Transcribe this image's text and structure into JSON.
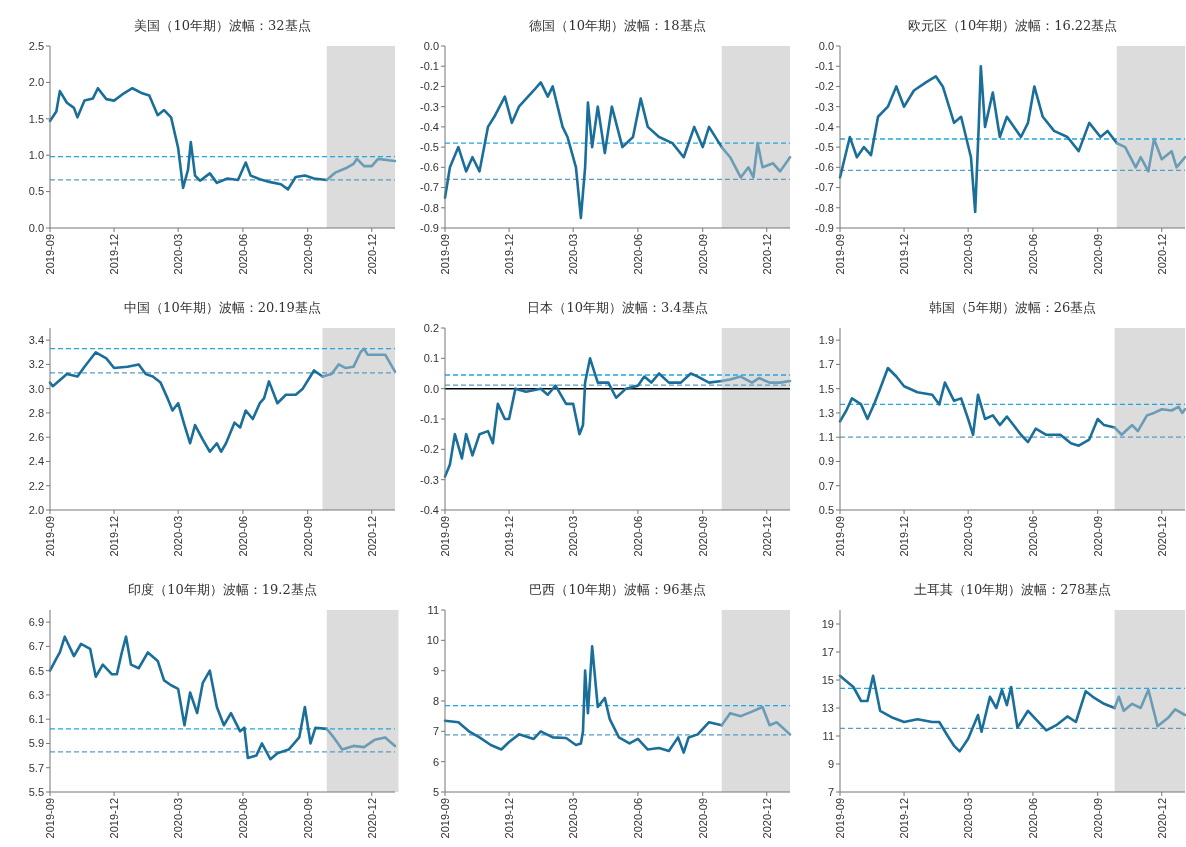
{
  "chart_data": [
    {
      "type": "line",
      "title": "美国（10年期）波幅：32基点",
      "xlim": [
        "2019-09-01",
        "2021-01-03"
      ],
      "xticks": [
        {
          "value": "2019-09-01",
          "label": "2019-09"
        },
        {
          "value": "2019-12-01",
          "label": "2019-12"
        },
        {
          "value": "2020-03-01",
          "label": "2020-03"
        },
        {
          "value": "2020-06-01",
          "label": "2020-06"
        },
        {
          "value": "2020-09-01",
          "label": "2020-09"
        },
        {
          "value": "2020-12-01",
          "label": "2020-12"
        }
      ],
      "ylim": [
        0,
        2.5
      ],
      "yticks": [
        {
          "value": 0,
          "label": "0.0"
        },
        {
          "value": 0.5,
          "label": "0.5"
        },
        {
          "value": 1,
          "label": "1.0"
        },
        {
          "value": 1.5,
          "label": "1.5"
        },
        {
          "value": 2,
          "label": "2.0"
        },
        {
          "value": 2.5,
          "label": "2.5"
        }
      ],
      "grid": false,
      "line_style": "solid",
      "bands": [
        {
          "axis": "x",
          "from": "2020-09-28",
          "to": "2021-01-03",
          "color": "#dcdcdc"
        }
      ],
      "ref_lines": [
        {
          "axis": "y",
          "value": 0.98,
          "color": "#21a6df",
          "line_style": "dashed"
        },
        {
          "axis": "y",
          "value": 0.66,
          "color": "#5b9cc0",
          "line_style": "dashed"
        }
      ],
      "series": [
        {
          "color": "#1a6e9a",
          "x": [
            "2019-09-01",
            "2019-09-10",
            "2019-09-15",
            "2019-09-25",
            "2019-10-05",
            "2019-10-10",
            "2019-10-20",
            "2019-11-01",
            "2019-11-08",
            "2019-11-20",
            "2019-12-01",
            "2019-12-15",
            "2019-12-27",
            "2020-01-10",
            "2020-01-20",
            "2020-02-01",
            "2020-02-10",
            "2020-02-20",
            "2020-03-01",
            "2020-03-08",
            "2020-03-15",
            "2020-03-19",
            "2020-03-25",
            "2020-04-01",
            "2020-04-15",
            "2020-04-25",
            "2020-05-10",
            "2020-05-25",
            "2020-06-05",
            "2020-06-12",
            "2020-06-25",
            "2020-07-10",
            "2020-07-25",
            "2020-08-04",
            "2020-08-15",
            "2020-08-28",
            "2020-09-10",
            "2020-09-28"
          ],
          "values": [
            1.47,
            1.6,
            1.88,
            1.72,
            1.65,
            1.52,
            1.75,
            1.78,
            1.92,
            1.77,
            1.75,
            1.85,
            1.92,
            1.85,
            1.82,
            1.55,
            1.62,
            1.52,
            1.1,
            0.55,
            0.8,
            1.18,
            0.72,
            0.65,
            0.75,
            0.62,
            0.68,
            0.66,
            0.9,
            0.72,
            0.67,
            0.63,
            0.6,
            0.53,
            0.7,
            0.72,
            0.68,
            0.66
          ]
        },
        {
          "color": "#6a9cb5",
          "x": [
            "2020-09-28",
            "2020-10-10",
            "2020-10-25",
            "2020-11-05",
            "2020-11-10",
            "2020-11-20",
            "2020-12-01",
            "2020-12-10",
            "2020-12-25",
            "2021-01-03"
          ],
          "values": [
            0.66,
            0.76,
            0.82,
            0.88,
            0.95,
            0.85,
            0.85,
            0.95,
            0.93,
            0.92
          ]
        }
      ]
    },
    {
      "type": "line",
      "title": "德国（10年期）波幅：18基点",
      "xlim": [
        "2019-09-01",
        "2021-01-03"
      ],
      "xticks": [
        {
          "value": "2019-09-01",
          "label": "2019-09"
        },
        {
          "value": "2019-12-01",
          "label": "2019-12"
        },
        {
          "value": "2020-03-01",
          "label": "2020-03"
        },
        {
          "value": "2020-06-01",
          "label": "2020-06"
        },
        {
          "value": "2020-09-01",
          "label": "2020-09"
        },
        {
          "value": "2020-12-01",
          "label": "2020-12"
        }
      ],
      "ylim": [
        -0.9,
        0
      ],
      "yticks": [
        {
          "value": 0,
          "label": "0.0"
        },
        -0.1,
        -0.2,
        -0.3,
        -0.4,
        -0.5,
        -0.6,
        -0.7,
        -0.8,
        -0.9
      ],
      "grid": false,
      "line_style": "solid",
      "bands": [
        {
          "axis": "x",
          "from": "2020-09-28",
          "to": "2021-01-03",
          "color": "#dcdcdc"
        }
      ],
      "ref_lines": [
        {
          "axis": "y",
          "value": -0.48,
          "color": "#21a6df",
          "line_style": "dashed"
        },
        {
          "axis": "y",
          "value": -0.66,
          "color": "#5b9cc0",
          "line_style": "dashed"
        }
      ],
      "series": [
        {
          "color": "#1a6e9a",
          "x": [
            "2019-09-01",
            "2019-09-08",
            "2019-09-20",
            "2019-10-01",
            "2019-10-10",
            "2019-10-20",
            "2019-11-01",
            "2019-11-10",
            "2019-11-25",
            "2019-12-05",
            "2019-12-15",
            "2020-01-05",
            "2020-01-15",
            "2020-01-25",
            "2020-02-01",
            "2020-02-15",
            "2020-02-22",
            "2020-03-05",
            "2020-03-12",
            "2020-03-18",
            "2020-03-22",
            "2020-03-28",
            "2020-04-05",
            "2020-04-15",
            "2020-04-25",
            "2020-05-10",
            "2020-05-25",
            "2020-06-05",
            "2020-06-15",
            "2020-07-01",
            "2020-07-20",
            "2020-08-05",
            "2020-08-20",
            "2020-09-01",
            "2020-09-10",
            "2020-09-28"
          ],
          "values": [
            -0.75,
            -0.6,
            -0.5,
            -0.62,
            -0.55,
            -0.62,
            -0.4,
            -0.35,
            -0.25,
            -0.38,
            -0.3,
            -0.22,
            -0.18,
            -0.25,
            -0.2,
            -0.4,
            -0.45,
            -0.6,
            -0.85,
            -0.6,
            -0.28,
            -0.5,
            -0.3,
            -0.53,
            -0.3,
            -0.5,
            -0.45,
            -0.26,
            -0.4,
            -0.45,
            -0.48,
            -0.55,
            -0.4,
            -0.5,
            -0.4,
            -0.5
          ]
        },
        {
          "color": "#6a9cb5",
          "x": [
            "2020-09-28",
            "2020-10-10",
            "2020-10-25",
            "2020-11-05",
            "2020-11-12",
            "2020-11-18",
            "2020-11-25",
            "2020-12-10",
            "2020-12-20",
            "2021-01-03"
          ],
          "values": [
            -0.5,
            -0.55,
            -0.65,
            -0.6,
            -0.65,
            -0.48,
            -0.6,
            -0.58,
            -0.62,
            -0.55
          ]
        }
      ]
    },
    {
      "type": "line",
      "title": "欧元区（10年期）波幅：16.22基点",
      "xlim": [
        "2019-09-01",
        "2021-01-03"
      ],
      "xticks": [
        {
          "value": "2019-09-01",
          "label": "2019-09"
        },
        {
          "value": "2019-12-01",
          "label": "2019-12"
        },
        {
          "value": "2020-03-01",
          "label": "2020-03"
        },
        {
          "value": "2020-06-01",
          "label": "2020-06"
        },
        {
          "value": "2020-09-01",
          "label": "2020-09"
        },
        {
          "value": "2020-12-01",
          "label": "2020-12"
        }
      ],
      "ylim": [
        -0.9,
        0
      ],
      "yticks": [
        {
          "value": 0,
          "label": "0.0"
        },
        -0.1,
        -0.2,
        -0.3,
        -0.4,
        -0.5,
        -0.6,
        -0.7,
        -0.8,
        -0.9
      ],
      "grid": false,
      "line_style": "solid",
      "bands": [
        {
          "axis": "x",
          "from": "2020-09-28",
          "to": "2021-01-03",
          "color": "#dcdcdc"
        }
      ],
      "ref_lines": [
        {
          "axis": "y",
          "value": -0.46,
          "color": "#21a6df",
          "line_style": "dashed"
        },
        {
          "axis": "y",
          "value": -0.615,
          "color": "#5b9cc0",
          "line_style": "dashed"
        }
      ],
      "series": [
        {
          "color": "#1a6e9a",
          "x": [
            "2019-09-01",
            "2019-09-15",
            "2019-09-25",
            "2019-10-05",
            "2019-10-15",
            "2019-10-25",
            "2019-11-08",
            "2019-11-20",
            "2019-12-01",
            "2019-12-15",
            "2020-01-01",
            "2020-01-15",
            "2020-01-25",
            "2020-02-10",
            "2020-02-20",
            "2020-03-05",
            "2020-03-11",
            "2020-03-16",
            "2020-03-19",
            "2020-03-25",
            "2020-04-05",
            "2020-04-15",
            "2020-04-25",
            "2020-05-15",
            "2020-05-25",
            "2020-06-03",
            "2020-06-15",
            "2020-07-01",
            "2020-07-20",
            "2020-08-05",
            "2020-08-20",
            "2020-09-05",
            "2020-09-15",
            "2020-09-28"
          ],
          "values": [
            -0.65,
            -0.45,
            -0.55,
            -0.5,
            -0.54,
            -0.35,
            -0.3,
            -0.2,
            -0.3,
            -0.22,
            -0.18,
            -0.15,
            -0.2,
            -0.38,
            -0.35,
            -0.55,
            -0.82,
            -0.4,
            -0.1,
            -0.4,
            -0.23,
            -0.45,
            -0.35,
            -0.45,
            -0.38,
            -0.2,
            -0.35,
            -0.42,
            -0.45,
            -0.52,
            -0.38,
            -0.45,
            -0.42,
            -0.48
          ]
        },
        {
          "color": "#6a9cb5",
          "x": [
            "2020-09-28",
            "2020-10-10",
            "2020-10-25",
            "2020-11-01",
            "2020-11-12",
            "2020-11-20",
            "2020-12-01",
            "2020-12-15",
            "2020-12-22",
            "2021-01-03"
          ],
          "values": [
            -0.48,
            -0.5,
            -0.6,
            -0.55,
            -0.62,
            -0.46,
            -0.56,
            -0.52,
            -0.6,
            -0.55
          ]
        }
      ]
    },
    {
      "type": "line",
      "title": "中国（10年期）波幅：20.19基点",
      "xlim": [
        "2019-09-01",
        "2021-01-03"
      ],
      "xticks": [
        {
          "value": "2019-09-01",
          "label": "2019-09"
        },
        {
          "value": "2019-12-01",
          "label": "2019-12"
        },
        {
          "value": "2020-03-01",
          "label": "2020-03"
        },
        {
          "value": "2020-06-01",
          "label": "2020-06"
        },
        {
          "value": "2020-09-01",
          "label": "2020-09"
        },
        {
          "value": "2020-12-01",
          "label": "2020-12"
        }
      ],
      "ylim": [
        2,
        3.5
      ],
      "yticks": [
        {
          "value": 2,
          "label": "2.0"
        },
        2.2,
        2.4,
        2.6,
        2.8,
        {
          "value": 3,
          "label": "3.0"
        },
        3.2,
        3.4
      ],
      "grid": false,
      "line_style": "solid",
      "bands": [
        {
          "axis": "x",
          "from": "2020-09-22",
          "to": "2021-01-03",
          "color": "#dcdcdc"
        }
      ],
      "ref_lines": [
        {
          "axis": "y",
          "value": 3.33,
          "color": "#21a6df",
          "line_style": "dashed"
        },
        {
          "axis": "y",
          "value": 3.13,
          "color": "#5b9cc0",
          "line_style": "dashed"
        }
      ],
      "series": [
        {
          "color": "#1a6e9a",
          "x": [
            "2019-09-01",
            "2019-09-05",
            "2019-09-25",
            "2019-10-10",
            "2019-10-20",
            "2019-11-05",
            "2019-11-20",
            "2019-12-01",
            "2019-12-20",
            "2020-01-05",
            "2020-01-15",
            "2020-01-25",
            "2020-02-05",
            "2020-02-15",
            "2020-02-22",
            "2020-03-01",
            "2020-03-10",
            "2020-03-18",
            "2020-03-25",
            "2020-04-05",
            "2020-04-15",
            "2020-04-25",
            "2020-05-01",
            "2020-05-08",
            "2020-05-20",
            "2020-05-28",
            "2020-06-05",
            "2020-06-15",
            "2020-06-25",
            "2020-07-01",
            "2020-07-08",
            "2020-07-20",
            "2020-08-01",
            "2020-08-15",
            "2020-08-25",
            "2020-09-10",
            "2020-09-22"
          ],
          "values": [
            3.05,
            3.02,
            3.12,
            3.1,
            3.18,
            3.3,
            3.25,
            3.17,
            3.18,
            3.2,
            3.12,
            3.1,
            3.05,
            2.92,
            2.82,
            2.88,
            2.7,
            2.55,
            2.7,
            2.58,
            2.48,
            2.55,
            2.48,
            2.55,
            2.72,
            2.68,
            2.82,
            2.75,
            2.88,
            2.92,
            3.06,
            2.88,
            2.95,
            2.95,
            3,
            3.15,
            3.1
          ]
        },
        {
          "color": "#6a9cb5",
          "x": [
            "2020-09-22",
            "2020-10-05",
            "2020-10-15",
            "2020-10-25",
            "2020-11-05",
            "2020-11-15",
            "2020-11-20",
            "2020-11-25",
            "2020-12-10",
            "2020-12-20",
            "2021-01-03"
          ],
          "values": [
            3.1,
            3.12,
            3.2,
            3.17,
            3.18,
            3.3,
            3.33,
            3.28,
            3.28,
            3.28,
            3.14
          ]
        }
      ]
    },
    {
      "type": "line",
      "title": "日本（10年期）波幅：3.4基点",
      "xlim": [
        "2019-09-01",
        "2021-01-03"
      ],
      "xticks": [
        {
          "value": "2019-09-01",
          "label": "2019-09"
        },
        {
          "value": "2019-12-01",
          "label": "2019-12"
        },
        {
          "value": "2020-03-01",
          "label": "2020-03"
        },
        {
          "value": "2020-06-01",
          "label": "2020-06"
        },
        {
          "value": "2020-09-01",
          "label": "2020-09"
        },
        {
          "value": "2020-12-01",
          "label": "2020-12"
        }
      ],
      "ylim": [
        -0.4,
        0.2
      ],
      "yticks": [
        -0.4,
        -0.3,
        -0.2,
        -0.1,
        {
          "value": 0,
          "label": "0.0"
        },
        0.1,
        0.2
      ],
      "grid": false,
      "line_style": "solid",
      "bands": [
        {
          "axis": "x",
          "from": "2020-09-28",
          "to": "2021-01-03",
          "color": "#dcdcdc"
        }
      ],
      "ref_lines": [
        {
          "axis": "y",
          "value": 0,
          "color": "#000000",
          "line_style": "solid"
        },
        {
          "axis": "y",
          "value": 0.045,
          "color": "#21a6df",
          "line_style": "dashed"
        },
        {
          "axis": "y",
          "value": 0.012,
          "color": "#5b9cc0",
          "line_style": "dashed"
        }
      ],
      "series": [
        {
          "color": "#1a6e9a",
          "x": [
            "2019-09-01",
            "2019-09-08",
            "2019-09-15",
            "2019-09-25",
            "2019-10-01",
            "2019-10-10",
            "2019-10-20",
            "2019-11-01",
            "2019-11-08",
            "2019-11-15",
            "2019-11-25",
            "2019-12-01",
            "2019-12-10",
            "2019-12-25",
            "2020-01-15",
            "2020-01-25",
            "2020-02-05",
            "2020-02-20",
            "2020-03-01",
            "2020-03-10",
            "2020-03-15",
            "2020-03-18",
            "2020-03-25",
            "2020-04-05",
            "2020-04-20",
            "2020-05-01",
            "2020-05-15",
            "2020-06-01",
            "2020-06-10",
            "2020-06-20",
            "2020-07-01",
            "2020-07-15",
            "2020-08-01",
            "2020-08-15",
            "2020-08-25",
            "2020-09-10",
            "2020-09-28"
          ],
          "values": [
            -0.29,
            -0.25,
            -0.15,
            -0.23,
            -0.15,
            -0.22,
            -0.15,
            -0.14,
            -0.18,
            -0.05,
            -0.1,
            -0.1,
            0,
            -0.01,
            0,
            -0.02,
            0.01,
            -0.05,
            -0.05,
            -0.15,
            -0.12,
            0.02,
            0.1,
            0.02,
            0.02,
            -0.03,
            0,
            0.01,
            0.04,
            0.02,
            0.05,
            0.02,
            0.02,
            0.05,
            0.04,
            0.02,
            0.025
          ]
        },
        {
          "color": "#6a9cb5",
          "x": [
            "2020-09-28",
            "2020-10-10",
            "2020-10-25",
            "2020-11-10",
            "2020-11-20",
            "2020-12-05",
            "2020-12-20",
            "2021-01-03"
          ],
          "values": [
            0.025,
            0.03,
            0.04,
            0.02,
            0.035,
            0.02,
            0.02,
            0.025
          ]
        }
      ]
    },
    {
      "type": "line",
      "title": "韩国（5年期）波幅：26基点",
      "xlim": [
        "2019-09-01",
        "2021-01-03"
      ],
      "xticks": [
        {
          "value": "2019-09-01",
          "label": "2019-09"
        },
        {
          "value": "2019-12-01",
          "label": "2019-12"
        },
        {
          "value": "2020-03-01",
          "label": "2020-03"
        },
        {
          "value": "2020-06-01",
          "label": "2020-06"
        },
        {
          "value": "2020-09-01",
          "label": "2020-09"
        },
        {
          "value": "2020-12-01",
          "label": "2020-12"
        }
      ],
      "ylim": [
        0.5,
        2
      ],
      "yticks": [
        0.5,
        0.7,
        0.9,
        1.1,
        1.3,
        1.5,
        1.7,
        1.9
      ],
      "grid": false,
      "line_style": "solid",
      "bands": [
        {
          "axis": "x",
          "from": "2020-09-25",
          "to": "2021-01-03",
          "color": "#dcdcdc"
        }
      ],
      "ref_lines": [
        {
          "axis": "y",
          "value": 1.37,
          "color": "#21a6df",
          "line_style": "dashed"
        },
        {
          "axis": "y",
          "value": 1.1,
          "color": "#5b9cc0",
          "line_style": "dashed"
        }
      ],
      "series": [
        {
          "color": "#1a6e9a",
          "x": [
            "2019-09-01",
            "2019-09-10",
            "2019-09-18",
            "2019-10-01",
            "2019-10-10",
            "2019-10-20",
            "2019-10-28",
            "2019-11-08",
            "2019-11-20",
            "2019-12-01",
            "2019-12-20",
            "2020-01-10",
            "2020-01-20",
            "2020-01-28",
            "2020-02-10",
            "2020-02-20",
            "2020-03-01",
            "2020-03-08",
            "2020-03-15",
            "2020-03-25",
            "2020-04-05",
            "2020-04-15",
            "2020-04-25",
            "2020-05-15",
            "2020-05-25",
            "2020-06-05",
            "2020-06-20",
            "2020-07-10",
            "2020-07-25",
            "2020-08-05",
            "2020-08-20",
            "2020-09-01",
            "2020-09-10",
            "2020-09-25"
          ],
          "values": [
            1.23,
            1.32,
            1.42,
            1.37,
            1.25,
            1.38,
            1.5,
            1.67,
            1.6,
            1.52,
            1.47,
            1.45,
            1.37,
            1.55,
            1.4,
            1.42,
            1.25,
            1.12,
            1.45,
            1.25,
            1.28,
            1.2,
            1.27,
            1.12,
            1.06,
            1.17,
            1.12,
            1.12,
            1.05,
            1.03,
            1.08,
            1.25,
            1.2,
            1.18
          ]
        },
        {
          "color": "#6a9cb5",
          "x": [
            "2020-09-25",
            "2020-10-05",
            "2020-10-20",
            "2020-10-28",
            "2020-11-10",
            "2020-11-20",
            "2020-12-01",
            "2020-12-15",
            "2020-12-25",
            "2020-12-30",
            "2021-01-03"
          ],
          "values": [
            1.18,
            1.12,
            1.2,
            1.15,
            1.28,
            1.3,
            1.33,
            1.32,
            1.35,
            1.3,
            1.33
          ]
        }
      ]
    },
    {
      "type": "line",
      "title": "印度（10年期）波幅：19.2基点",
      "xlim": [
        "2019-09-01",
        "2021-01-03"
      ],
      "xticks": [
        {
          "value": "2019-09-01",
          "label": "2019-09"
        },
        {
          "value": "2019-12-01",
          "label": "2019-12"
        },
        {
          "value": "2020-03-01",
          "label": "2020-03"
        },
        {
          "value": "2020-06-01",
          "label": "2020-06"
        },
        {
          "value": "2020-09-01",
          "label": "2020-09"
        },
        {
          "value": "2020-12-01",
          "label": "2020-12"
        }
      ],
      "ylim": [
        5.5,
        7
      ],
      "yticks": [
        5.5,
        5.7,
        5.9,
        6.1,
        6.3,
        6.5,
        6.7,
        6.9
      ],
      "grid": false,
      "line_style": "solid",
      "bands": [
        {
          "axis": "x",
          "from": "2020-09-28",
          "to": "2021-01-08",
          "color": "#dcdcdc"
        }
      ],
      "ref_lines": [
        {
          "axis": "y",
          "value": 6.02,
          "color": "#21a6df",
          "line_style": "dashed"
        },
        {
          "axis": "y",
          "value": 5.83,
          "color": "#5b9cc0",
          "line_style": "dashed"
        }
      ],
      "series": [
        {
          "color": "#1a6e9a",
          "x": [
            "2019-09-01",
            "2019-09-10",
            "2019-09-15",
            "2019-09-22",
            "2019-10-05",
            "2019-10-15",
            "2019-10-28",
            "2019-11-05",
            "2019-11-15",
            "2019-11-28",
            "2019-12-05",
            "2019-12-12",
            "2019-12-18",
            "2019-12-25",
            "2020-01-05",
            "2020-01-18",
            "2020-02-01",
            "2020-02-10",
            "2020-02-20",
            "2020-03-01",
            "2020-03-10",
            "2020-03-18",
            "2020-03-28",
            "2020-04-05",
            "2020-04-15",
            "2020-04-25",
            "2020-05-05",
            "2020-05-15",
            "2020-05-28",
            "2020-06-03",
            "2020-06-08",
            "2020-06-20",
            "2020-06-28",
            "2020-07-10",
            "2020-07-20",
            "2020-08-05",
            "2020-08-20",
            "2020-08-28",
            "2020-09-05",
            "2020-09-12",
            "2020-09-28"
          ],
          "values": [
            6.5,
            6.6,
            6.65,
            6.78,
            6.62,
            6.72,
            6.68,
            6.45,
            6.55,
            6.47,
            6.47,
            6.65,
            6.78,
            6.55,
            6.52,
            6.65,
            6.58,
            6.42,
            6.38,
            6.35,
            6.05,
            6.32,
            6.15,
            6.4,
            6.5,
            6.2,
            6.05,
            6.15,
            6,
            6.03,
            5.78,
            5.8,
            5.9,
            5.77,
            5.82,
            5.85,
            5.95,
            6.2,
            5.9,
            6.03,
            6.02
          ]
        },
        {
          "color": "#6a9cb5",
          "x": [
            "2020-09-28",
            "2020-10-08",
            "2020-10-20",
            "2020-11-05",
            "2020-11-20",
            "2020-12-05",
            "2020-12-20",
            "2021-01-03"
          ],
          "values": [
            6.02,
            5.95,
            5.85,
            5.88,
            5.87,
            5.93,
            5.95,
            5.88
          ]
        }
      ]
    },
    {
      "type": "line",
      "title": "巴西（10年期）波幅：96基点",
      "xlim": [
        "2019-09-01",
        "2021-01-03"
      ],
      "xticks": [
        {
          "value": "2019-09-01",
          "label": "2019-09"
        },
        {
          "value": "2019-12-01",
          "label": "2019-12"
        },
        {
          "value": "2020-03-01",
          "label": "2020-03"
        },
        {
          "value": "2020-06-01",
          "label": "2020-06"
        },
        {
          "value": "2020-09-01",
          "label": "2020-09"
        },
        {
          "value": "2020-12-01",
          "label": "2020-12"
        }
      ],
      "ylim": [
        5,
        11
      ],
      "yticks": [
        5,
        6,
        7,
        8,
        9,
        10,
        11
      ],
      "grid": false,
      "line_style": "solid",
      "bands": [
        {
          "axis": "x",
          "from": "2020-09-28",
          "to": "2021-01-03",
          "color": "#dcdcdc"
        }
      ],
      "ref_lines": [
        {
          "axis": "y",
          "value": 7.85,
          "color": "#21a6df",
          "line_style": "dashed"
        },
        {
          "axis": "y",
          "value": 6.88,
          "color": "#5b9cc0",
          "line_style": "dashed"
        }
      ],
      "series": [
        {
          "color": "#1a6e9a",
          "x": [
            "2019-09-01",
            "2019-09-20",
            "2019-10-05",
            "2019-10-20",
            "2019-11-05",
            "2019-11-20",
            "2019-12-01",
            "2019-12-15",
            "2020-01-05",
            "2020-01-15",
            "2020-02-01",
            "2020-02-20",
            "2020-03-05",
            "2020-03-12",
            "2020-03-15",
            "2020-03-18",
            "2020-03-22",
            "2020-03-28",
            "2020-04-05",
            "2020-04-15",
            "2020-04-22",
            "2020-05-05",
            "2020-05-20",
            "2020-06-01",
            "2020-06-15",
            "2020-07-01",
            "2020-07-15",
            "2020-07-28",
            "2020-08-05",
            "2020-08-12",
            "2020-08-25",
            "2020-09-10",
            "2020-09-28"
          ],
          "values": [
            7.35,
            7.3,
            7,
            6.8,
            6.55,
            6.4,
            6.65,
            6.9,
            6.75,
            7,
            6.8,
            6.78,
            6.55,
            6.6,
            7,
            9,
            7.6,
            9.8,
            7.8,
            8.1,
            7.4,
            6.8,
            6.6,
            6.75,
            6.4,
            6.45,
            6.35,
            6.8,
            6.3,
            6.8,
            6.9,
            7.3,
            7.2
          ]
        },
        {
          "color": "#6a9cb5",
          "x": [
            "2020-09-28",
            "2020-10-10",
            "2020-10-25",
            "2020-11-10",
            "2020-11-25",
            "2020-12-05",
            "2020-12-15",
            "2021-01-03"
          ],
          "values": [
            7.2,
            7.6,
            7.5,
            7.65,
            7.8,
            7.2,
            7.3,
            6.9
          ]
        }
      ]
    },
    {
      "type": "line",
      "title": "土耳其（10年期）波幅：278基点",
      "xlim": [
        "2019-09-01",
        "2021-01-03"
      ],
      "xticks": [
        {
          "value": "2019-09-01",
          "label": "2019-09"
        },
        {
          "value": "2019-12-01",
          "label": "2019-12"
        },
        {
          "value": "2020-03-01",
          "label": "2020-03"
        },
        {
          "value": "2020-06-01",
          "label": "2020-06"
        },
        {
          "value": "2020-09-01",
          "label": "2020-09"
        },
        {
          "value": "2020-12-01",
          "label": "2020-12"
        }
      ],
      "ylim": [
        7,
        20
      ],
      "yticks": [
        7,
        9,
        11,
        13,
        15,
        17,
        19
      ],
      "grid": false,
      "line_style": "solid",
      "bands": [
        {
          "axis": "x",
          "from": "2020-09-25",
          "to": "2021-01-03",
          "color": "#dcdcdc"
        }
      ],
      "ref_lines": [
        {
          "axis": "y",
          "value": 14.4,
          "color": "#21a6df",
          "line_style": "dashed"
        },
        {
          "axis": "y",
          "value": 11.55,
          "color": "#5b9cc0",
          "line_style": "dashed"
        }
      ],
      "series": [
        {
          "color": "#1a6e9a",
          "x": [
            "2019-09-01",
            "2019-09-08",
            "2019-09-20",
            "2019-10-01",
            "2019-10-10",
            "2019-10-18",
            "2019-10-28",
            "2019-11-15",
            "2019-12-01",
            "2019-12-20",
            "2020-01-10",
            "2020-01-20",
            "2020-02-01",
            "2020-02-10",
            "2020-02-18",
            "2020-03-01",
            "2020-03-15",
            "2020-03-20",
            "2020-04-01",
            "2020-04-10",
            "2020-04-18",
            "2020-04-25",
            "2020-05-01",
            "2020-05-10",
            "2020-05-25",
            "2020-06-05",
            "2020-06-20",
            "2020-07-05",
            "2020-07-20",
            "2020-08-01",
            "2020-08-15",
            "2020-08-25",
            "2020-09-10",
            "2020-09-25"
          ],
          "values": [
            15.3,
            15,
            14.5,
            13.5,
            13.5,
            15.3,
            12.8,
            12.3,
            12,
            12.2,
            12,
            12,
            11,
            10.3,
            9.9,
            10.8,
            12.5,
            11.3,
            13.8,
            13,
            14.3,
            13.2,
            14.5,
            11.6,
            12.8,
            12.2,
            11.4,
            11.8,
            12.4,
            12,
            14.2,
            13.8,
            13.3,
            13
          ]
        },
        {
          "color": "#6a9cb5",
          "x": [
            "2020-09-25",
            "2020-10-01",
            "2020-10-08",
            "2020-10-20",
            "2020-11-01",
            "2020-11-12",
            "2020-11-25",
            "2020-12-10",
            "2020-12-20",
            "2021-01-03"
          ],
          "values": [
            13,
            13.8,
            12.8,
            13.3,
            13,
            14.3,
            11.7,
            12.3,
            12.9,
            12.5
          ]
        }
      ]
    }
  ]
}
